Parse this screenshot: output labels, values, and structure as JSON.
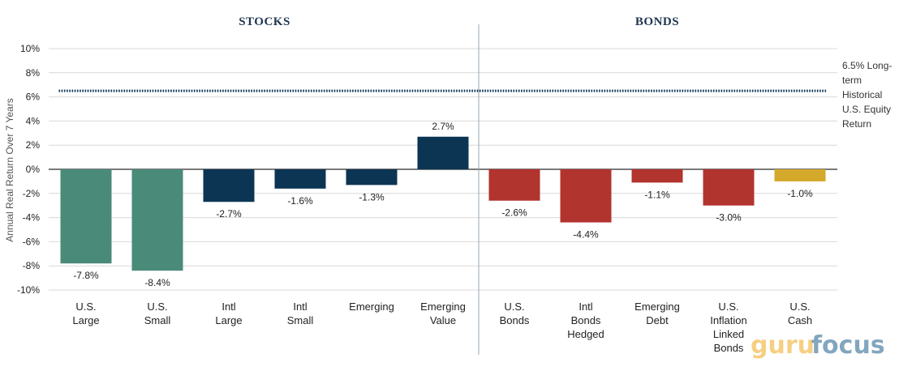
{
  "chart_data": {
    "type": "bar",
    "title": "",
    "xlabel": "",
    "ylabel": "Annual Real Return Over 7 Years",
    "ylim": [
      -10,
      10
    ],
    "yticks": [
      10,
      8,
      6,
      4,
      2,
      0,
      -2,
      -4,
      -6,
      -8,
      -10
    ],
    "ytick_labels": [
      "10%",
      "8%",
      "6%",
      "4%",
      "2%",
      "0%",
      "-2%",
      "-4%",
      "-6%",
      "-8%",
      "-10%"
    ],
    "grid": true,
    "sections": [
      {
        "name": "STOCKS",
        "start": 0,
        "end": 5
      },
      {
        "name": "BONDS",
        "start": 6,
        "end": 10
      }
    ],
    "bars": [
      {
        "label": [
          "U.S.",
          "Large"
        ],
        "value": -7.8,
        "value_label": "-7.8%",
        "color": "#4a8a78"
      },
      {
        "label": [
          "U.S.",
          "Small"
        ],
        "value": -8.4,
        "value_label": "-8.4%",
        "color": "#4a8a78"
      },
      {
        "label": [
          "Intl",
          "Large"
        ],
        "value": -2.7,
        "value_label": "-2.7%",
        "color": "#0b3553"
      },
      {
        "label": [
          "Intl",
          "Small"
        ],
        "value": -1.6,
        "value_label": "-1.6%",
        "color": "#0b3553"
      },
      {
        "label": [
          "Emerging"
        ],
        "value": -1.3,
        "value_label": "-1.3%",
        "color": "#0b3553"
      },
      {
        "label": [
          "Emerging",
          "Value"
        ],
        "value": 2.7,
        "value_label": "2.7%",
        "color": "#0b3553"
      },
      {
        "label": [
          "U.S.",
          "Bonds"
        ],
        "value": -2.6,
        "value_label": "-2.6%",
        "color": "#b2342e"
      },
      {
        "label": [
          "Intl",
          "Bonds",
          "Hedged"
        ],
        "value": -4.4,
        "value_label": "-4.4%",
        "color": "#b2342e"
      },
      {
        "label": [
          "Emerging",
          "Debt"
        ],
        "value": -1.1,
        "value_label": "-1.1%",
        "color": "#b2342e"
      },
      {
        "label": [
          "U.S.",
          "Inflation",
          "Linked",
          "Bonds"
        ],
        "value": -3.0,
        "value_label": "-3.0%",
        "color": "#b2342e"
      },
      {
        "label": [
          "U.S.",
          "Cash"
        ],
        "value": -1.0,
        "value_label": "-1.0%",
        "color": "#d4a82a"
      }
    ],
    "reference_line": {
      "value": 6.5,
      "style": "dotted",
      "color": "#0b3553",
      "label": [
        "6.5% Long-",
        "term",
        "Historical",
        "U.S. Equity",
        "Return"
      ]
    }
  },
  "watermark": {
    "part1": "guru",
    "part2": "focus"
  }
}
